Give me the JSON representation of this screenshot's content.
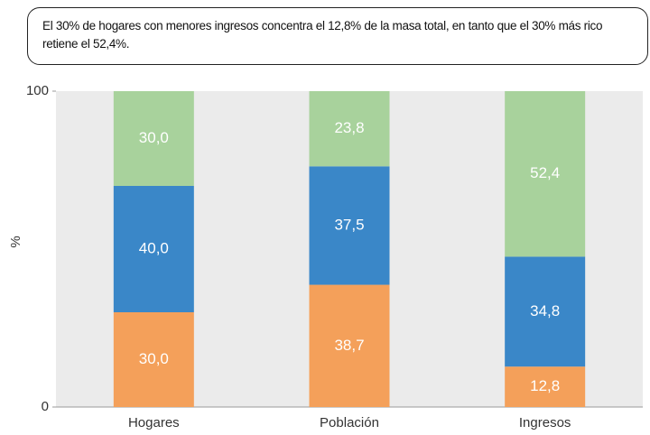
{
  "chart_data": {
    "type": "stacked_bar",
    "annotation": "El 30% de hogares con menores ingresos concentra el 12,8% de la masa total, en tanto que el 30% más rico retiene el 52,4%.",
    "ylabel": "%",
    "categories": [
      "Hogares",
      "Población",
      "Ingresos"
    ],
    "series": [
      {
        "color": "#f4a05a",
        "values": [
          30.0,
          38.7,
          12.8
        ],
        "value_labels": [
          "30,0",
          "38,7",
          "12,8"
        ]
      },
      {
        "color": "#3a87c8",
        "values": [
          40.0,
          37.5,
          34.8
        ],
        "value_labels": [
          "40,0",
          "37,5",
          "34,8"
        ]
      },
      {
        "color": "#a8d29c",
        "values": [
          30.0,
          23.8,
          52.4
        ],
        "value_labels": [
          "30,0",
          "23,8",
          "52,4"
        ]
      }
    ],
    "ylim": [
      0,
      100
    ],
    "yticks": [
      0,
      100
    ],
    "background": "#ebebeb"
  }
}
